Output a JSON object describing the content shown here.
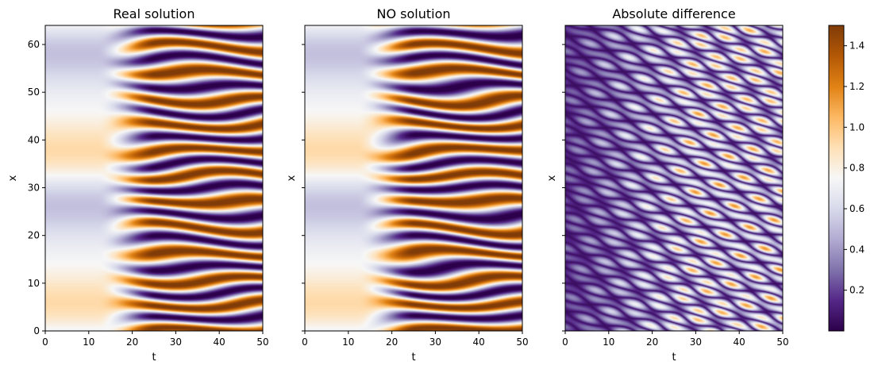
{
  "chart_data": [
    {
      "type": "heatmap",
      "title": "Real solution",
      "xlabel": "t",
      "ylabel": "x",
      "xlim": [
        0,
        50
      ],
      "ylim": [
        0,
        64
      ],
      "xticks": [
        "0",
        "10",
        "20",
        "30",
        "40",
        "50"
      ],
      "yticks": [
        "0",
        "10",
        "20",
        "30",
        "40",
        "50",
        "60"
      ],
      "colormap": "PuOr_r",
      "value_range": [
        0.0,
        1.5
      ],
      "colorbar": false
    },
    {
      "type": "heatmap",
      "title": "NO solution",
      "xlabel": "t",
      "ylabel": "x",
      "xlim": [
        0,
        50
      ],
      "ylim": [
        0,
        64
      ],
      "xticks": [
        "0",
        "10",
        "20",
        "30",
        "40",
        "50"
      ],
      "colormap": "PuOr_r",
      "value_range": [
        0.0,
        1.5
      ],
      "colorbar": false
    },
    {
      "type": "heatmap",
      "title": "Absolute difference",
      "xlabel": "t",
      "ylabel": "x",
      "xlim": [
        0,
        50
      ],
      "ylim": [
        0,
        64
      ],
      "xticks": [
        "0",
        "10",
        "20",
        "30",
        "40",
        "50"
      ],
      "colormap": "PuOr_r",
      "value_range": [
        0.0,
        1.5
      ],
      "colorbar": true,
      "colorbar_ticks": [
        "0.2",
        "0.4",
        "0.6",
        "0.8",
        "1.0",
        "1.2",
        "1.4"
      ],
      "colorbar_tick_values": [
        0.2,
        0.4,
        0.6,
        0.8,
        1.0,
        1.2,
        1.4
      ]
    }
  ],
  "colors": {
    "low": "#2d004b",
    "mid": "#f7f7f7",
    "high": "#7f3b08"
  }
}
